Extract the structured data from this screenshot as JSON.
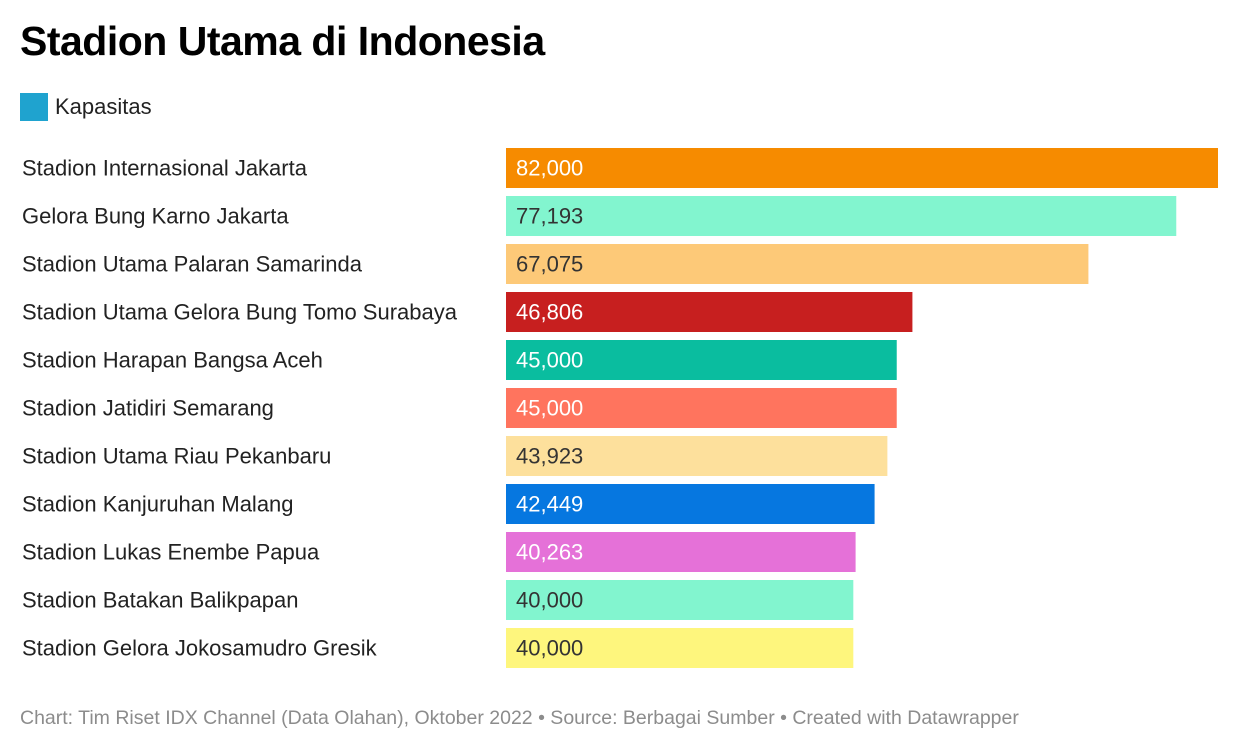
{
  "chart_data": {
    "type": "bar",
    "orientation": "horizontal",
    "title": "Stadion Utama di Indonesia",
    "legend": [
      {
        "label": "Kapasitas",
        "color": "#1fa3cf"
      }
    ],
    "legend_position": "top-left",
    "grid": false,
    "xlim": [
      0,
      82000
    ],
    "categories": [
      "Stadion Internasional Jakarta",
      "Gelora Bung Karno Jakarta",
      "Stadion Utama Palaran Samarinda",
      "Stadion Utama Gelora Bung Tomo Surabaya",
      "Stadion Harapan Bangsa Aceh",
      "Stadion Jatidiri Semarang",
      "Stadion Utama Riau Pekanbaru",
      "Stadion Kanjuruhan Malang",
      "Stadion Lukas Enembe Papua",
      "Stadion Batakan Balikpapan",
      "Stadion Gelora Jokosamudro Gresik"
    ],
    "values": [
      82000,
      77193,
      67075,
      46806,
      45000,
      45000,
      43923,
      42449,
      40263,
      40000,
      40000
    ],
    "value_labels": [
      "82,000",
      "77,193",
      "67,075",
      "46,806",
      "45,000",
      "45,000",
      "43,923",
      "42,449",
      "40,263",
      "40,000",
      "40,000"
    ],
    "bar_colors": [
      "#f68b00",
      "#82f5cf",
      "#fdc978",
      "#c71f1f",
      "#0abd9f",
      "#ff745e",
      "#fde09c",
      "#0677e0",
      "#e571d8",
      "#82f5cf",
      "#fef67d"
    ],
    "label_colors": [
      "#ffffff",
      "#333333",
      "#333333",
      "#ffffff",
      "#ffffff",
      "#ffffff",
      "#333333",
      "#ffffff",
      "#ffffff",
      "#333333",
      "#333333"
    ]
  },
  "footer": {
    "text": "Chart: Tim Riset IDX Channel (Data Olahan), Oktober 2022 • Source: Berbagai Sumber • Created with Datawrapper"
  }
}
